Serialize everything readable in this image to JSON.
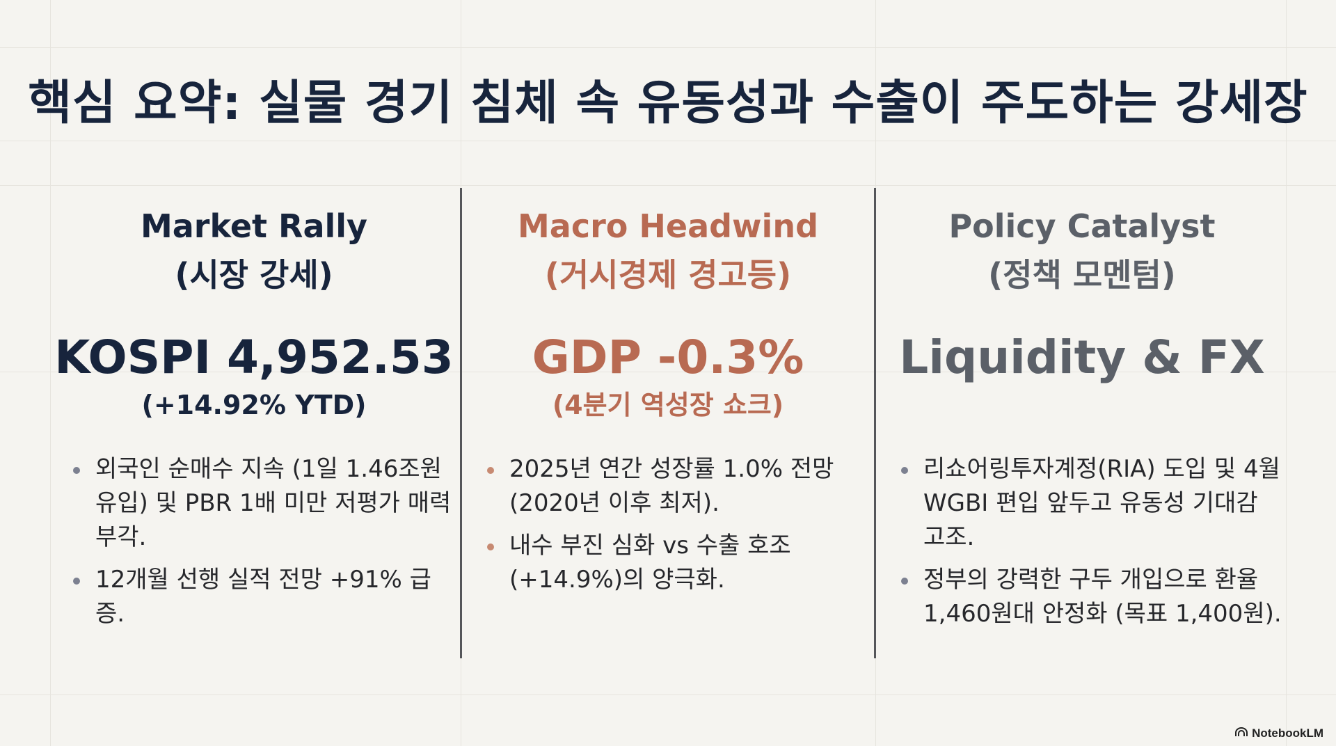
{
  "title": "핵심 요약: 실물 경기 침체 속 유동성과 수출이 주도하는 강세장",
  "columns": [
    {
      "heading_en": "Market Rally",
      "heading_ko": "(시장 강세)",
      "metric": "KOSPI 4,952.53",
      "metric_sub": "(+14.92% YTD)",
      "accent": "#17243c",
      "bullets": [
        "외국인 순매수 지속 (1일 1.46조원 유입) 및 PBR 1배 미만 저평가 매력 부각.",
        "12개월 선행 실적 전망 +91% 급증."
      ]
    },
    {
      "heading_en": "Macro Headwind",
      "heading_ko": "(거시경제 경고등)",
      "metric": "GDP -0.3%",
      "metric_sub": "(4분기 역성장 쇼크)",
      "accent": "#b86a52",
      "bullets": [
        "2025년 연간 성장률 1.0% 전망 (2020년 이후 최저).",
        "내수 부진 심화 vs 수출 호조 (+14.9%)의 양극화."
      ]
    },
    {
      "heading_en": "Policy Catalyst",
      "heading_ko": "(정책 모멘텀)",
      "metric": "Liquidity & FX",
      "metric_sub": "",
      "accent": "#5b6068",
      "bullets": [
        "리쇼어링투자계정(RIA) 도입 및 4월 WGBI 편입 앞두고 유동성 기대감 고조.",
        "정부의 강력한 구두 개입으로 환율 1,460원대 안정화 (목표 1,400원)."
      ]
    }
  ],
  "watermark": {
    "icon": "notebooklm-icon",
    "text": "NotebookLM"
  }
}
